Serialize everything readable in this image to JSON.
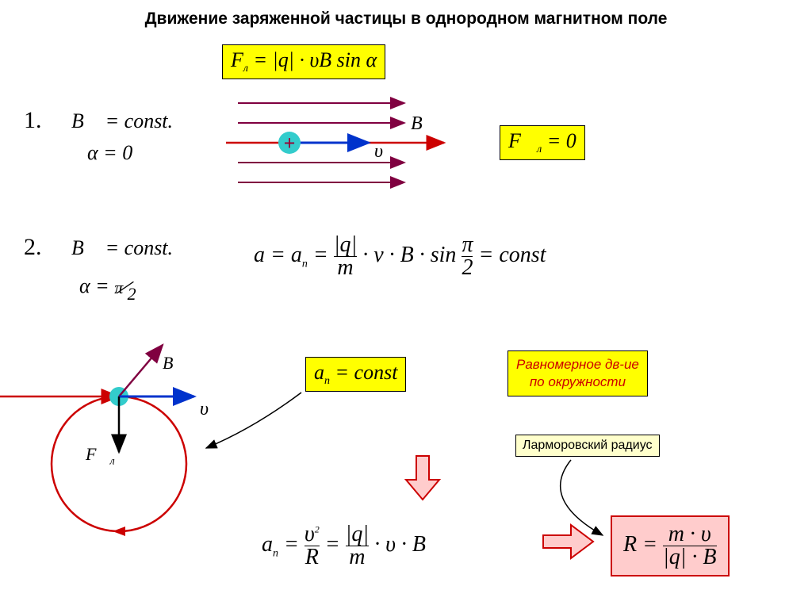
{
  "title": "Движение заряженной частицы в однородном магнитном поле",
  "main_formula": "F<sub>л</sub> = |q| · υB sin α",
  "case1": {
    "num": "1.",
    "b_eq": "B⃗ = const.",
    "alpha_eq": "α = 0",
    "result": "F⃗<sub>л</sub> = 0",
    "labels": {
      "B": "B⃗",
      "v": "υ⃗"
    }
  },
  "case2": {
    "num": "2.",
    "b_eq": "B⃗ = const.",
    "alpha_eq": "α = π ⁄ 2",
    "accel_eq": "a = a<sub>n</sub> = <span style='display:inline-block;vertical-align:middle;text-align:center;line-height:1'><span style='display:block'>|q|</span><span style='display:block;border-top:1.5px solid #000'>m</span></span> · v · B · sin <span style='display:inline-block;vertical-align:middle;text-align:center;line-height:1'><span style='display:block'>π</span><span style='display:block;border-top:1.5px solid #000'>2</span></span> = const",
    "an_const": "a<sub>n</sub> = const",
    "uniform_motion": "Равномерное дв-ие<br>по окружности",
    "larmor_label": "Ларморовский радиус",
    "an_formula": "a<sub>n</sub> = <span style='display:inline-block;vertical-align:middle;text-align:center;line-height:1'><span style='display:block'>υ<sup style='font-size:12px'>2</sup></span><span style='display:block;border-top:1.5px solid #000'>R</span></span> = <span style='display:inline-block;vertical-align:middle;text-align:center;line-height:1'><span style='display:block'>|q|</span><span style='display:block;border-top:1.5px solid #000'>m</span></span> · υ · B",
    "R_formula": "R = <span style='display:inline-block;vertical-align:middle;text-align:center;line-height:1'><span style='display:block'>m · υ</span><span style='display:block;border-top:1.5px solid #000'>|q| · B</span></span>",
    "diagram_labels": {
      "B": "B⃗",
      "v": "υ⃗",
      "F": "F⃗<sub>л</sub>"
    }
  },
  "colors": {
    "field_line": "#800040",
    "red": "#cc0000",
    "blue": "#0033cc",
    "cyan": "#33cccc",
    "plus": "#990033"
  }
}
